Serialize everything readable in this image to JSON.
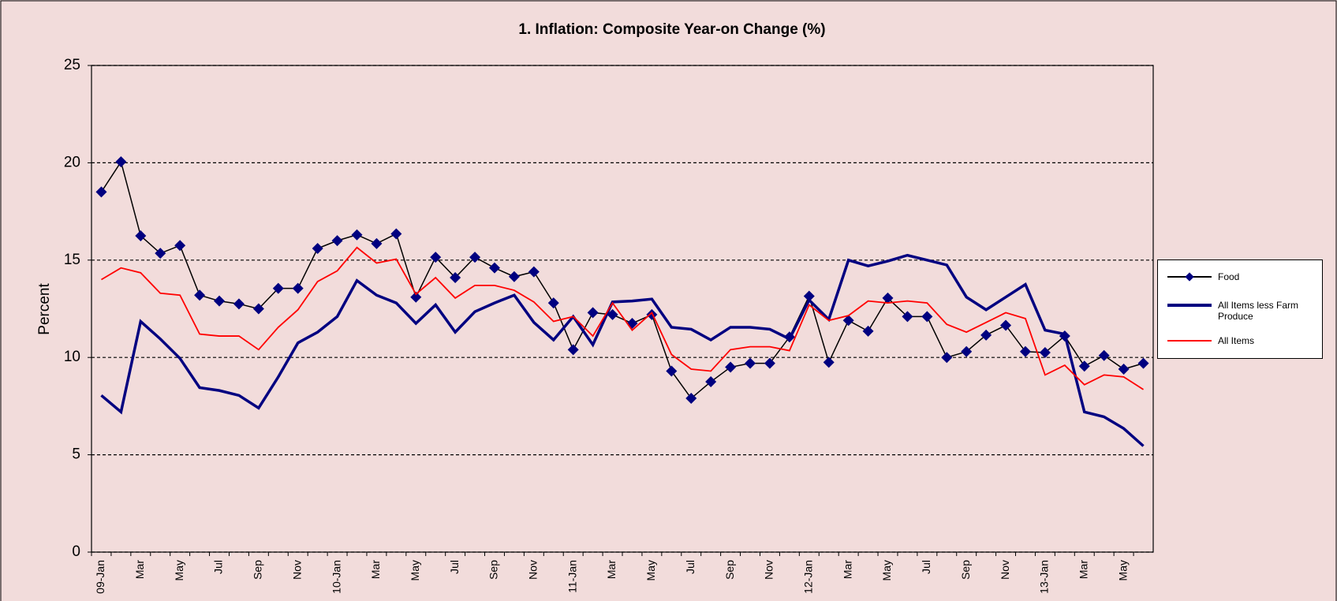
{
  "chart_data": {
    "type": "line",
    "title": "1. Inflation: Composite Year-on Change (%)",
    "y_label": "Percent",
    "categories": [
      "09-Jan",
      null,
      "Mar",
      null,
      "May",
      null,
      "Jul",
      null,
      "Sep",
      null,
      "Nov",
      null,
      "10-Jan",
      null,
      "Mar",
      null,
      "May",
      null,
      "Jul",
      null,
      "Sep",
      null,
      "Nov",
      null,
      "11-Jan",
      null,
      "Mar",
      null,
      "May",
      null,
      "Jul",
      null,
      "Sep",
      null,
      "Nov",
      null,
      "12-Jan",
      null,
      "Mar",
      null,
      "May",
      null,
      "Jul",
      null,
      "Sep",
      null,
      "Nov",
      null,
      "13-Jan",
      null,
      "Mar",
      null,
      "May",
      null
    ],
    "series": [
      {
        "name": "Food",
        "color": "#000080",
        "line_color": "#000000",
        "marker": "diamond",
        "values": [
          18.5,
          20.05,
          16.25,
          15.35,
          15.75,
          13.2,
          12.9,
          12.75,
          12.5,
          13.55,
          13.55,
          15.6,
          16.0,
          16.3,
          15.85,
          16.35,
          13.1,
          15.15,
          14.1,
          15.15,
          14.6,
          14.15,
          14.4,
          12.8,
          10.4,
          12.3,
          12.2,
          11.75,
          12.2,
          9.3,
          7.9,
          8.75,
          9.5,
          9.7,
          9.7,
          11.05,
          13.15,
          9.75,
          11.9,
          11.35,
          13.05,
          12.1,
          12.1,
          10.0,
          10.3,
          11.15,
          11.65,
          10.3,
          10.25,
          11.1,
          9.55,
          10.1,
          9.4,
          9.7
        ]
      },
      {
        "name": "All Items less Farm Produce",
        "color": "#000080",
        "values": [
          8.05,
          7.2,
          11.85,
          10.95,
          9.95,
          8.45,
          8.3,
          8.05,
          7.4,
          9.0,
          10.75,
          11.3,
          12.1,
          13.95,
          13.2,
          12.8,
          11.75,
          12.7,
          11.3,
          12.35,
          12.8,
          13.2,
          11.8,
          10.9,
          12.1,
          10.65,
          12.85,
          12.9,
          13.0,
          11.55,
          11.45,
          10.9,
          11.55,
          11.55,
          11.45,
          10.95,
          12.95,
          11.95,
          15.0,
          14.7,
          14.95,
          15.25,
          15.0,
          14.75,
          13.1,
          12.45,
          13.1,
          13.75,
          11.4,
          11.2,
          7.2,
          6.95,
          6.35,
          5.45
        ]
      },
      {
        "name": "All Items",
        "color": "#ff0000",
        "values": [
          14.0,
          14.6,
          14.35,
          13.3,
          13.2,
          11.2,
          11.1,
          11.1,
          10.4,
          11.55,
          12.45,
          13.9,
          14.45,
          15.65,
          14.85,
          15.05,
          13.25,
          14.1,
          13.05,
          13.7,
          13.7,
          13.45,
          12.85,
          11.85,
          12.1,
          11.1,
          12.8,
          11.4,
          12.3,
          10.15,
          9.4,
          9.3,
          10.4,
          10.55,
          10.55,
          10.35,
          12.7,
          11.9,
          12.15,
          12.9,
          12.8,
          12.9,
          12.8,
          11.7,
          11.3,
          11.8,
          12.3,
          12.0,
          9.1,
          9.6,
          8.6,
          9.1,
          9.0,
          8.35
        ]
      }
    ],
    "ylim": [
      0,
      25
    ],
    "yticks": [
      0,
      5,
      10,
      15,
      20,
      25
    ],
    "grid": true,
    "legend": "right"
  }
}
